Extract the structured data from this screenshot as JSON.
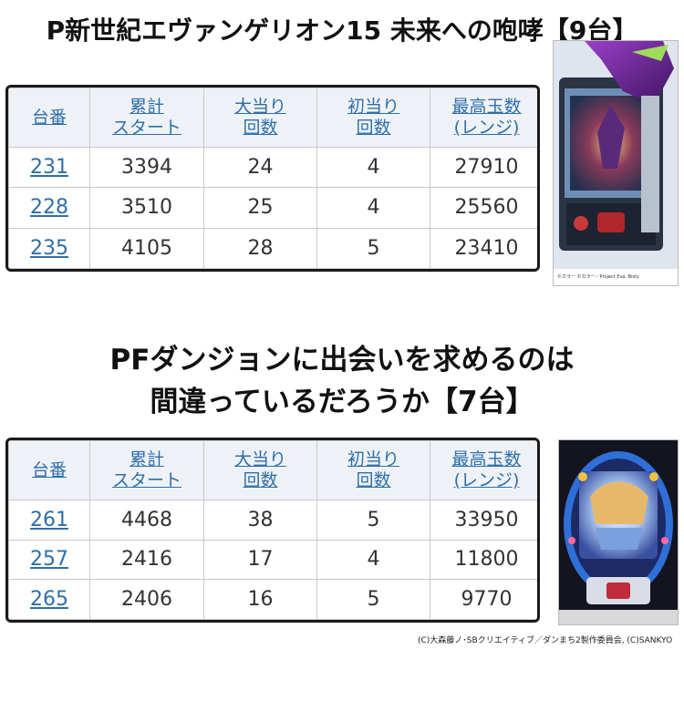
{
  "section1": {
    "title": "P新世紀エヴァンゲリオン15 未来への咆哮【9台】",
    "headers": [
      [
        "台番"
      ],
      [
        "累計",
        "スタート"
      ],
      [
        "大当り",
        "回数"
      ],
      [
        "初当り",
        "回数"
      ],
      [
        "最高玉数",
        "(レンジ)"
      ]
    ],
    "rows": [
      [
        "231",
        "3394",
        "24",
        "4",
        "27910"
      ],
      [
        "228",
        "3510",
        "25",
        "4",
        "25560"
      ],
      [
        "235",
        "4105",
        "28",
        "5",
        "23410"
      ]
    ],
    "machine_credit": "©カラー ©カラー／Project Eva. Bisty"
  },
  "section2": {
    "title_line1": "PFダンジョンに出会いを求めるのは",
    "title_line2": "間違っているだろうか【7台】",
    "headers": [
      [
        "台番"
      ],
      [
        "累計",
        "スタート"
      ],
      [
        "大当り",
        "回数"
      ],
      [
        "初当り",
        "回数"
      ],
      [
        "最高玉数",
        "(レンジ)"
      ]
    ],
    "rows": [
      [
        "261",
        "4468",
        "38",
        "5",
        "33950"
      ],
      [
        "257",
        "2416",
        "17",
        "4",
        "11800"
      ],
      [
        "265",
        "2406",
        "16",
        "5",
        "9770"
      ]
    ]
  },
  "copyright": "(C)大森藤ノ･SBクリエイティブ／ダンまち2製作委員会, (C)SANKYO",
  "colors": {
    "header_bg": "#eef2f7",
    "link": "#2f6fa8",
    "border": "#1a1a1a"
  }
}
